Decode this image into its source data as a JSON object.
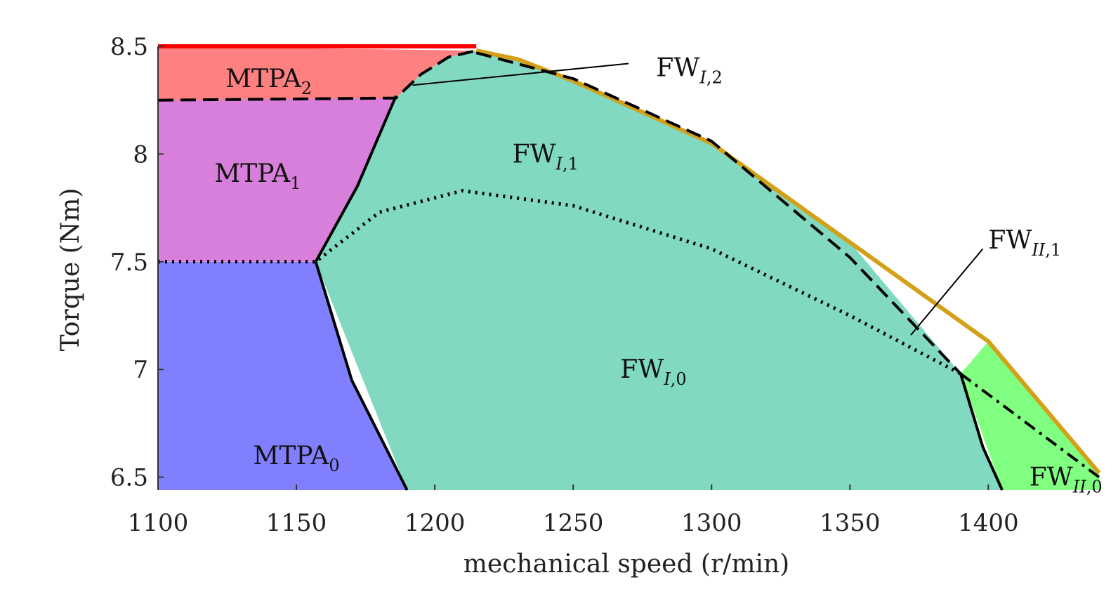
{
  "chart_data": {
    "type": "area",
    "title": "",
    "xlabel": "mechanical speed (r/min)",
    "ylabel": "Torque (Nm)",
    "xlim": [
      1100,
      1440
    ],
    "ylim": [
      6.44,
      8.5
    ],
    "xticks": [
      1100,
      1150,
      1200,
      1250,
      1300,
      1350,
      1400
    ],
    "yticks": [
      6.5,
      7,
      7.5,
      8,
      8.5
    ],
    "grid": false,
    "legend": "none",
    "colors": {
      "mtpa0": "#8080ff",
      "mtpa1": "#d87fdb",
      "mtpa2": "#ff8080",
      "fw_i": "#80d9c0",
      "fw_ii": "#80ff80",
      "top_line": "#ff0000",
      "envelope": "#d4a017",
      "boundary": "#000000"
    },
    "regions": [
      {
        "id": "mtpa0",
        "base": "MTPA",
        "sub": "0",
        "sub_italic": false,
        "label_at": [
          1150,
          6.6
        ]
      },
      {
        "id": "mtpa1",
        "base": "MTPA",
        "sub": "1",
        "sub_italic": false,
        "label_at": [
          1136,
          7.91
        ]
      },
      {
        "id": "mtpa2",
        "base": "MTPA",
        "sub": "2",
        "sub_italic": false,
        "label_at": [
          1140,
          8.35
        ]
      },
      {
        "id": "fw_i1",
        "base": "FW",
        "sub": "I",
        "sub_italic": true,
        "sub_rest": ",1",
        "label_at": [
          1240,
          8.0
        ]
      },
      {
        "id": "fw_i0",
        "base": "FW",
        "sub": "I",
        "sub_italic": true,
        "sub_rest": ",0",
        "label_at": [
          1279,
          7.0
        ]
      },
      {
        "id": "fw_ii0",
        "base": "FW",
        "sub": "II",
        "sub_italic": true,
        "sub_rest": ",0",
        "label_at": [
          1428,
          6.5
        ]
      }
    ],
    "annotations": [
      {
        "base": "FW",
        "sub": "I",
        "sub_italic": true,
        "sub_rest": ",2",
        "text_at": [
          1280,
          8.4
        ],
        "arrow_from": [
          1270,
          8.42
        ],
        "arrow_to": [
          1192,
          8.32
        ]
      },
      {
        "base": "FW",
        "sub": "II",
        "sub_italic": true,
        "sub_rest": ",1",
        "text_at": [
          1400,
          7.6
        ],
        "arrow_from": [
          1398,
          7.56
        ],
        "arrow_to": [
          1372,
          7.16
        ]
      }
    ],
    "series": [
      {
        "id": "envelope",
        "style": "solid-gold",
        "x": [
          1215,
          1230,
          1250,
          1300,
          1350,
          1400,
          1440
        ],
        "y": [
          8.48,
          8.44,
          8.34,
          8.05,
          7.59,
          7.13,
          6.52
        ]
      },
      {
        "id": "mtpa0_boundary",
        "style": "solid",
        "x": [
          1157,
          1170,
          1190
        ],
        "y": [
          7.5,
          6.95,
          6.44
        ]
      },
      {
        "id": "mtpa1_boundary",
        "style": "solid",
        "x": [
          1157,
          1172,
          1186
        ],
        "y": [
          7.5,
          7.85,
          8.27
        ]
      },
      {
        "id": "fw_i0_upper",
        "style": "dotted",
        "x": [
          1100,
          1157,
          1180,
          1210,
          1250,
          1300,
          1350,
          1390
        ],
        "y": [
          7.5,
          7.5,
          7.73,
          7.83,
          7.76,
          7.56,
          7.25,
          6.98
        ]
      },
      {
        "id": "mtpa2_lower",
        "style": "dashed",
        "x": [
          1100,
          1186,
          1195,
          1205,
          1215
        ],
        "y": [
          8.25,
          8.26,
          8.37,
          8.45,
          8.48
        ]
      },
      {
        "id": "fw_i1_upper",
        "style": "dashed",
        "x": [
          1215,
          1250,
          1300,
          1350,
          1390
        ],
        "y": [
          8.47,
          8.35,
          8.06,
          7.52,
          6.98
        ]
      },
      {
        "id": "fw_ii_boundary",
        "style": "solid",
        "x": [
          1390,
          1398,
          1405
        ],
        "y": [
          6.98,
          6.64,
          6.44
        ]
      },
      {
        "id": "fw_ii1_upper",
        "style": "dashdot",
        "x": [
          1390,
          1440
        ],
        "y": [
          6.98,
          6.5
        ]
      },
      {
        "id": "top_limit",
        "style": "solid-red",
        "x": [
          1100,
          1215
        ],
        "y": [
          8.5,
          8.5
        ]
      }
    ]
  }
}
